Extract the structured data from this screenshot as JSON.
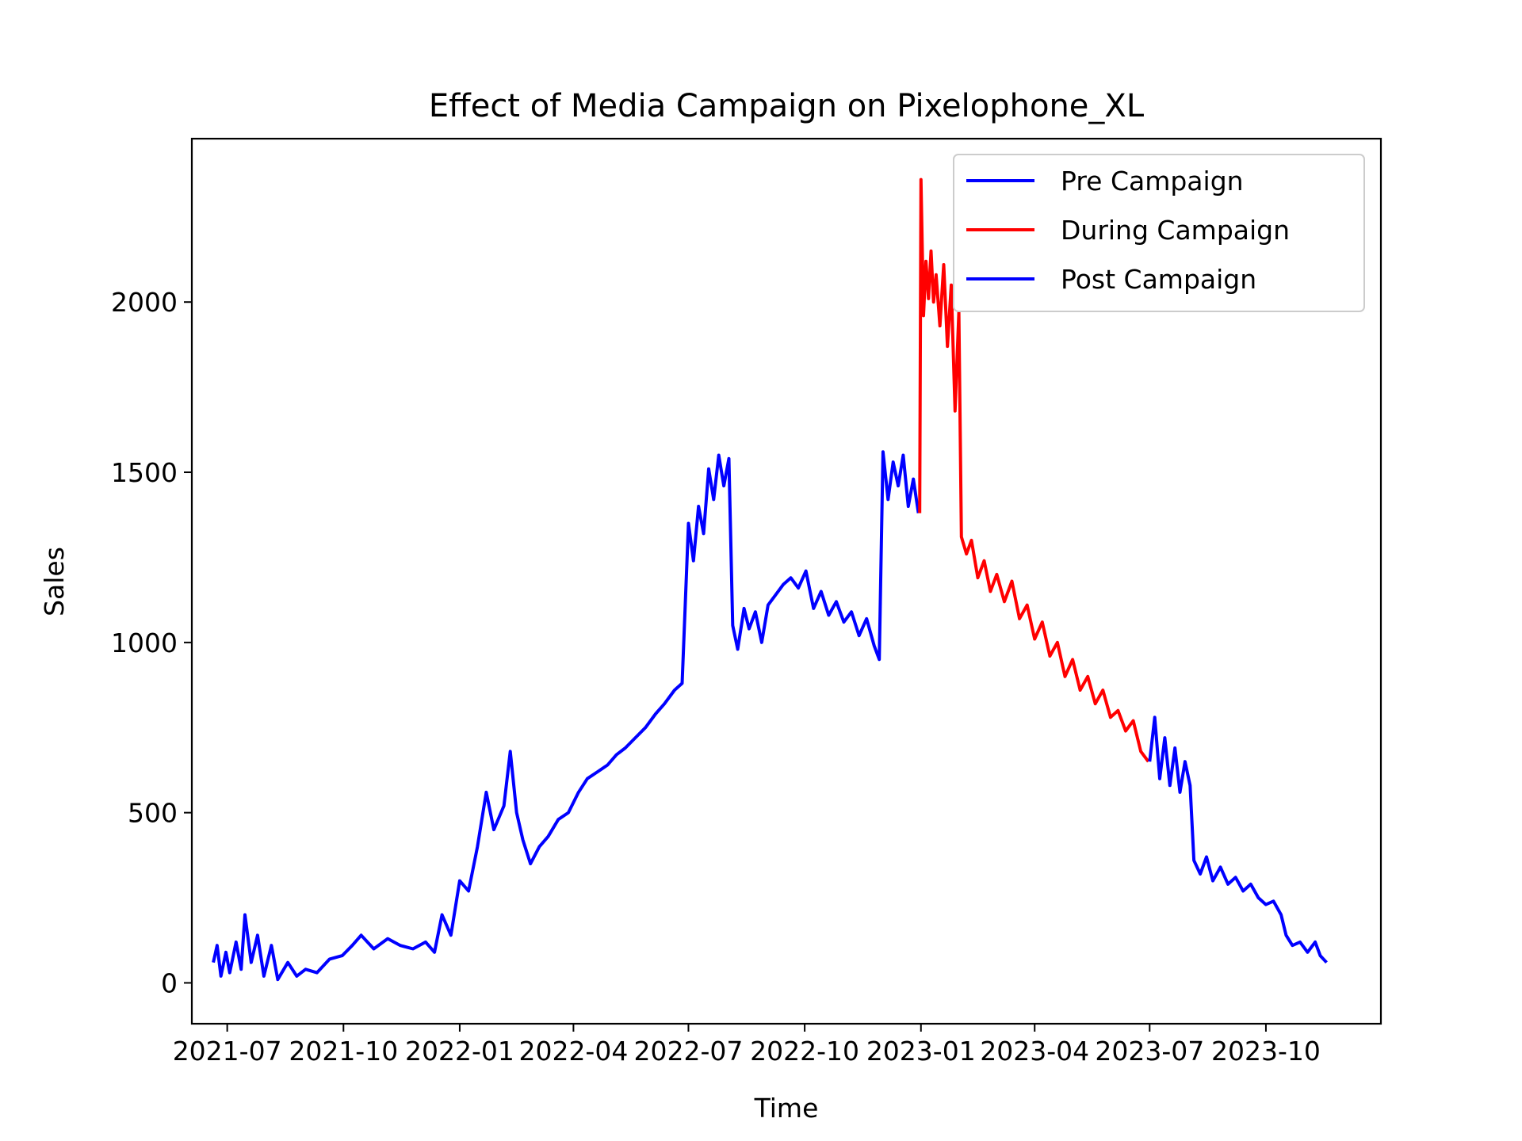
{
  "chart_data": {
    "type": "line",
    "title": "Effect of Media Campaign on Pixelophone_XL",
    "xlabel": "Time",
    "ylabel": "Sales",
    "xlim": [
      "2021-06-03",
      "2023-12-31"
    ],
    "ylim": [
      -120,
      2480
    ],
    "x_ticks": [
      "2021-07",
      "2021-10",
      "2022-01",
      "2022-04",
      "2022-07",
      "2022-10",
      "2023-01",
      "2023-04",
      "2023-07",
      "2023-10"
    ],
    "y_ticks": [
      0,
      500,
      1000,
      1500,
      2000
    ],
    "grid": false,
    "legend": {
      "placement": "top-right"
    },
    "series": [
      {
        "name": "Pre Campaign",
        "color": "#0000ff",
        "points": [
          [
            "2021-06-20",
            60
          ],
          [
            "2021-06-23",
            110
          ],
          [
            "2021-06-26",
            20
          ],
          [
            "2021-06-30",
            90
          ],
          [
            "2021-07-03",
            30
          ],
          [
            "2021-07-08",
            120
          ],
          [
            "2021-07-12",
            40
          ],
          [
            "2021-07-15",
            200
          ],
          [
            "2021-07-20",
            60
          ],
          [
            "2021-07-25",
            140
          ],
          [
            "2021-07-30",
            20
          ],
          [
            "2021-08-05",
            110
          ],
          [
            "2021-08-10",
            10
          ],
          [
            "2021-08-18",
            60
          ],
          [
            "2021-08-25",
            20
          ],
          [
            "2021-09-01",
            40
          ],
          [
            "2021-09-10",
            30
          ],
          [
            "2021-09-20",
            70
          ],
          [
            "2021-09-30",
            80
          ],
          [
            "2021-10-08",
            110
          ],
          [
            "2021-10-15",
            140
          ],
          [
            "2021-10-25",
            100
          ],
          [
            "2021-11-05",
            130
          ],
          [
            "2021-11-15",
            110
          ],
          [
            "2021-11-25",
            100
          ],
          [
            "2021-12-05",
            120
          ],
          [
            "2021-12-12",
            90
          ],
          [
            "2021-12-18",
            200
          ],
          [
            "2021-12-25",
            140
          ],
          [
            "2022-01-01",
            300
          ],
          [
            "2022-01-08",
            270
          ],
          [
            "2022-01-15",
            400
          ],
          [
            "2022-01-22",
            560
          ],
          [
            "2022-01-28",
            450
          ],
          [
            "2022-02-05",
            520
          ],
          [
            "2022-02-10",
            680
          ],
          [
            "2022-02-15",
            500
          ],
          [
            "2022-02-20",
            420
          ],
          [
            "2022-02-26",
            350
          ],
          [
            "2022-03-05",
            400
          ],
          [
            "2022-03-12",
            430
          ],
          [
            "2022-03-20",
            480
          ],
          [
            "2022-03-28",
            500
          ],
          [
            "2022-04-05",
            560
          ],
          [
            "2022-04-12",
            600
          ],
          [
            "2022-04-20",
            620
          ],
          [
            "2022-04-28",
            640
          ],
          [
            "2022-05-05",
            670
          ],
          [
            "2022-05-12",
            690
          ],
          [
            "2022-05-20",
            720
          ],
          [
            "2022-05-28",
            750
          ],
          [
            "2022-06-05",
            790
          ],
          [
            "2022-06-12",
            820
          ],
          [
            "2022-06-20",
            860
          ],
          [
            "2022-06-26",
            880
          ],
          [
            "2022-07-01",
            1350
          ],
          [
            "2022-07-05",
            1240
          ],
          [
            "2022-07-09",
            1400
          ],
          [
            "2022-07-13",
            1320
          ],
          [
            "2022-07-17",
            1510
          ],
          [
            "2022-07-21",
            1420
          ],
          [
            "2022-07-25",
            1550
          ],
          [
            "2022-07-29",
            1460
          ],
          [
            "2022-08-02",
            1540
          ],
          [
            "2022-08-05",
            1050
          ],
          [
            "2022-08-09",
            980
          ],
          [
            "2022-08-14",
            1100
          ],
          [
            "2022-08-18",
            1040
          ],
          [
            "2022-08-23",
            1090
          ],
          [
            "2022-08-28",
            1000
          ],
          [
            "2022-09-02",
            1110
          ],
          [
            "2022-09-08",
            1140
          ],
          [
            "2022-09-14",
            1170
          ],
          [
            "2022-09-20",
            1190
          ],
          [
            "2022-09-26",
            1160
          ],
          [
            "2022-10-02",
            1210
          ],
          [
            "2022-10-08",
            1100
          ],
          [
            "2022-10-14",
            1150
          ],
          [
            "2022-10-20",
            1080
          ],
          [
            "2022-10-26",
            1120
          ],
          [
            "2022-11-01",
            1060
          ],
          [
            "2022-11-07",
            1090
          ],
          [
            "2022-11-13",
            1020
          ],
          [
            "2022-11-19",
            1070
          ],
          [
            "2022-11-25",
            990
          ],
          [
            "2022-11-29",
            950
          ],
          [
            "2022-12-02",
            1560
          ],
          [
            "2022-12-06",
            1420
          ],
          [
            "2022-12-10",
            1530
          ],
          [
            "2022-12-14",
            1460
          ],
          [
            "2022-12-18",
            1550
          ],
          [
            "2022-12-22",
            1400
          ],
          [
            "2022-12-26",
            1480
          ],
          [
            "2022-12-30",
            1380
          ]
        ]
      },
      {
        "name": "During Campaign",
        "color": "#ff0000",
        "points": [
          [
            "2022-12-31",
            1380
          ],
          [
            "2023-01-01",
            2360
          ],
          [
            "2023-01-03",
            1960
          ],
          [
            "2023-01-05",
            2120
          ],
          [
            "2023-01-07",
            2010
          ],
          [
            "2023-01-09",
            2150
          ],
          [
            "2023-01-11",
            2000
          ],
          [
            "2023-01-13",
            2080
          ],
          [
            "2023-01-16",
            1930
          ],
          [
            "2023-01-19",
            2110
          ],
          [
            "2023-01-22",
            1870
          ],
          [
            "2023-01-25",
            2050
          ],
          [
            "2023-01-28",
            1680
          ],
          [
            "2023-01-31",
            1970
          ],
          [
            "2023-02-02",
            1310
          ],
          [
            "2023-02-06",
            1260
          ],
          [
            "2023-02-10",
            1300
          ],
          [
            "2023-02-15",
            1190
          ],
          [
            "2023-02-20",
            1240
          ],
          [
            "2023-02-25",
            1150
          ],
          [
            "2023-03-02",
            1200
          ],
          [
            "2023-03-08",
            1120
          ],
          [
            "2023-03-14",
            1180
          ],
          [
            "2023-03-20",
            1070
          ],
          [
            "2023-03-26",
            1110
          ],
          [
            "2023-04-01",
            1010
          ],
          [
            "2023-04-07",
            1060
          ],
          [
            "2023-04-13",
            960
          ],
          [
            "2023-04-19",
            1000
          ],
          [
            "2023-04-25",
            900
          ],
          [
            "2023-05-01",
            950
          ],
          [
            "2023-05-07",
            860
          ],
          [
            "2023-05-13",
            900
          ],
          [
            "2023-05-19",
            820
          ],
          [
            "2023-05-25",
            860
          ],
          [
            "2023-05-31",
            780
          ],
          [
            "2023-06-06",
            800
          ],
          [
            "2023-06-12",
            740
          ],
          [
            "2023-06-18",
            770
          ],
          [
            "2023-06-24",
            680
          ],
          [
            "2023-06-30",
            650
          ]
        ]
      },
      {
        "name": "Post Campaign",
        "color": "#0000ff",
        "points": [
          [
            "2023-07-01",
            650
          ],
          [
            "2023-07-05",
            780
          ],
          [
            "2023-07-09",
            600
          ],
          [
            "2023-07-13",
            720
          ],
          [
            "2023-07-17",
            580
          ],
          [
            "2023-07-21",
            690
          ],
          [
            "2023-07-25",
            560
          ],
          [
            "2023-07-29",
            650
          ],
          [
            "2023-08-02",
            580
          ],
          [
            "2023-08-05",
            360
          ],
          [
            "2023-08-10",
            320
          ],
          [
            "2023-08-15",
            370
          ],
          [
            "2023-08-20",
            300
          ],
          [
            "2023-08-26",
            340
          ],
          [
            "2023-09-01",
            290
          ],
          [
            "2023-09-07",
            310
          ],
          [
            "2023-09-13",
            270
          ],
          [
            "2023-09-19",
            290
          ],
          [
            "2023-09-25",
            250
          ],
          [
            "2023-10-01",
            230
          ],
          [
            "2023-10-07",
            240
          ],
          [
            "2023-10-13",
            200
          ],
          [
            "2023-10-17",
            140
          ],
          [
            "2023-10-22",
            110
          ],
          [
            "2023-10-28",
            120
          ],
          [
            "2023-11-03",
            90
          ],
          [
            "2023-11-09",
            120
          ],
          [
            "2023-11-13",
            80
          ],
          [
            "2023-11-18",
            60
          ]
        ]
      }
    ]
  }
}
